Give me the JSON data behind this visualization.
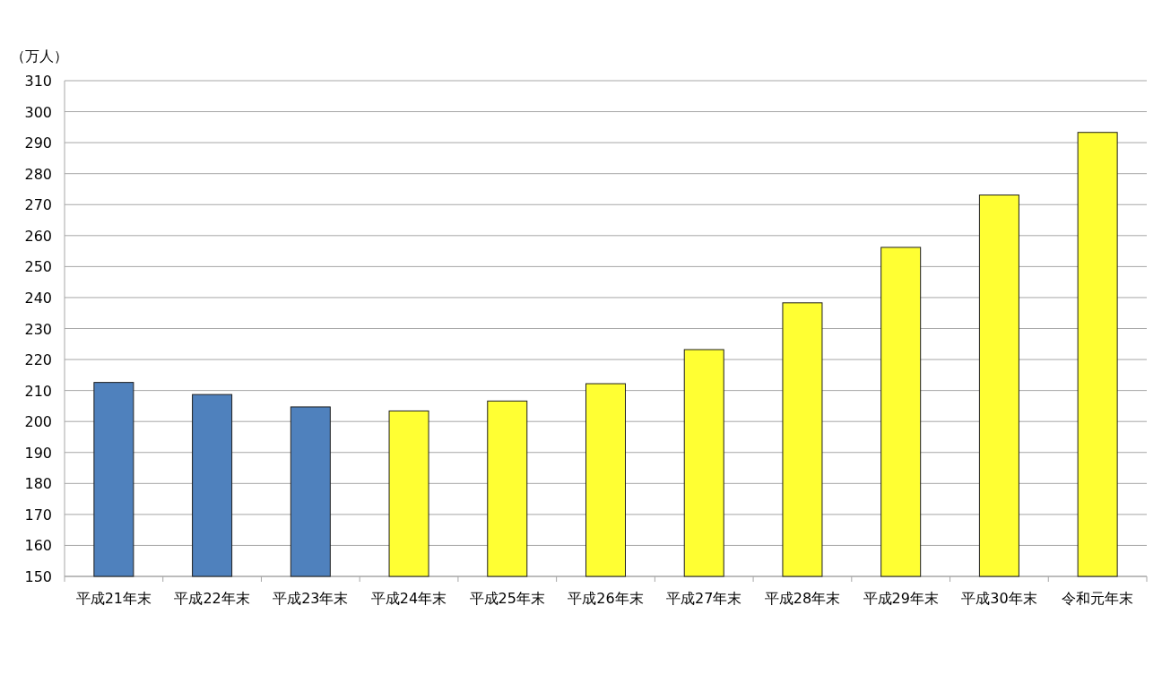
{
  "chart_data": {
    "type": "bar",
    "ylabel": "（万人）",
    "categories": [
      "平成21年末",
      "平成22年末",
      "平成23年末",
      "平成24年末",
      "平成25年末",
      "平成26年末",
      "平成27年末",
      "平成28年末",
      "平成29年末",
      "平成30年末",
      "令和元年末"
    ],
    "values": [
      212.6,
      208.7,
      204.7,
      203.4,
      206.6,
      212.2,
      223.2,
      238.3,
      256.2,
      273.1,
      293.3
    ],
    "colors": [
      "#4f81bd",
      "#4f81bd",
      "#4f81bd",
      "#ffff33",
      "#ffff33",
      "#ffff33",
      "#ffff33",
      "#ffff33",
      "#ffff33",
      "#ffff33",
      "#ffff33"
    ],
    "ylim": [
      150,
      310
    ],
    "yticks": [
      150,
      160,
      170,
      180,
      190,
      200,
      210,
      220,
      230,
      240,
      250,
      260,
      270,
      280,
      290,
      300,
      310
    ],
    "grid": "y"
  }
}
